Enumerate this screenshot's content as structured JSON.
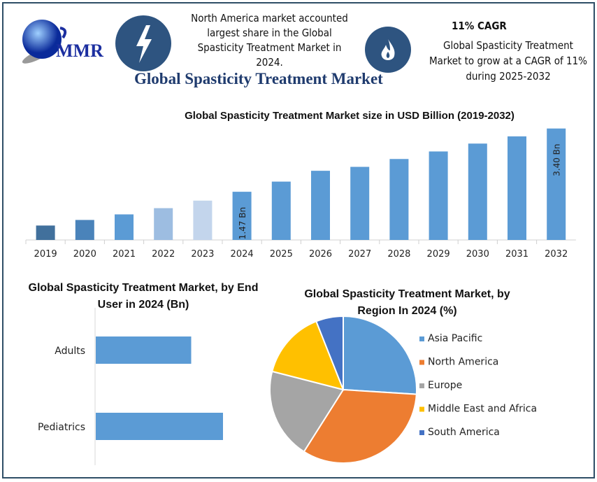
{
  "header": {
    "logo_text": "MMR",
    "north_america_note": "North America market accounted largest share in the Global Spasticity Treatment Market in 2024.",
    "cagr_title": "11% CAGR",
    "cagr_note": "Global Spasticity Treatment Market to grow at a CAGR of 11% during 2025-2032",
    "main_title": "Global Spasticity Treatment Market",
    "icons": [
      "lightning-icon",
      "flame-icon"
    ],
    "accent": "#2e5480"
  },
  "chart_data": [
    {
      "type": "bar",
      "title": "Global Spasticity Treatment Market size in USD Billion (2019-2032)",
      "categories": [
        "2019",
        "2020",
        "2021",
        "2022",
        "2023",
        "2024",
        "2025",
        "2026",
        "2027",
        "2028",
        "2029",
        "2030",
        "2031",
        "2032"
      ],
      "values": [
        0.44,
        0.61,
        0.78,
        0.97,
        1.2,
        1.47,
        1.78,
        2.11,
        2.23,
        2.47,
        2.7,
        2.94,
        3.16,
        3.4
      ],
      "data_labels": {
        "2024": "1.47 Bn",
        "2032": "3.40 Bn"
      },
      "colors": [
        "#41709c",
        "#4a83ba",
        "#5b9bd5",
        "#9dbde1",
        "#c3d5ec",
        "#5b9bd5",
        "#5b9bd5",
        "#5b9bd5",
        "#5b9bd5",
        "#5b9bd5",
        "#5b9bd5",
        "#5b9bd5",
        "#5b9bd5",
        "#5b9bd5"
      ],
      "ylim": [
        0,
        3.5
      ],
      "grid": false
    },
    {
      "type": "bar",
      "orientation": "horizontal",
      "title": "Global Spasticity Treatment Market, by End User in 2024 (Bn)",
      "categories": [
        "Adults",
        "Pediatrics"
      ],
      "values": [
        0.63,
        0.84
      ],
      "color": "#5b9bd5"
    },
    {
      "type": "pie",
      "title": "Global Spasticity Treatment Market, by Region In 2024 (%)",
      "labels": [
        "Asia Pacific",
        "North America",
        "Europe",
        "Middle East and Africa",
        "South America"
      ],
      "values": [
        26,
        33,
        20,
        15,
        6
      ],
      "colors": [
        "#5b9bd5",
        "#ed7d31",
        "#a5a5a5",
        "#ffc000",
        "#4472c4"
      ],
      "legend": "right"
    }
  ]
}
